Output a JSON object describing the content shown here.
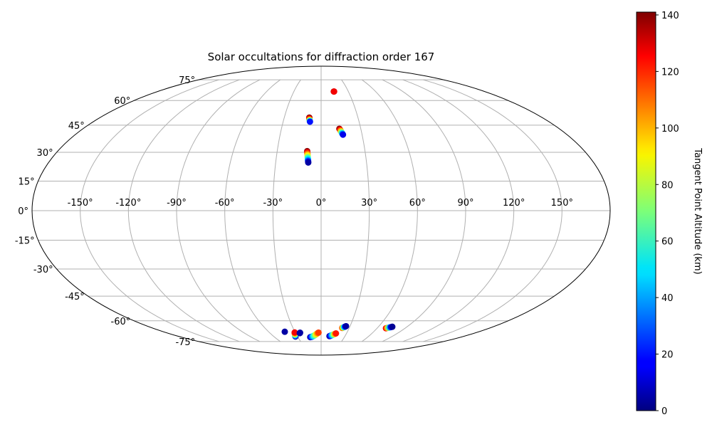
{
  "chart_data": {
    "type": "scatter",
    "projection": "mollweide",
    "title": "Solar occultations for diffraction order 167",
    "grid": true,
    "longitude_ticks": [
      "-150°",
      "-120°",
      "-90°",
      "-60°",
      "-30°",
      "0°",
      "30°",
      "60°",
      "90°",
      "120°",
      "150°"
    ],
    "latitude_ticks": [
      "-75°",
      "-60°",
      "-45°",
      "-30°",
      "-15°",
      "0°",
      "15°",
      "30°",
      "45°",
      "60°",
      "75°"
    ],
    "colorbar": {
      "label": "Tangent Point Altitude (km)",
      "colormap": "jet",
      "range": [
        0,
        141
      ],
      "ticks": [
        "0",
        "20",
        "40",
        "60",
        "80",
        "100",
        "120",
        "140"
      ]
    },
    "series": [
      {
        "points": [
          {
            "lon": 14,
            "lat": 66.1,
            "alt": 135
          },
          {
            "lon": 14.3,
            "lat": 66.1,
            "alt": 125
          }
        ]
      },
      {
        "points": [
          {
            "lon": -9.6,
            "lat": 49.4,
            "alt": 138
          },
          {
            "lon": -9.5,
            "lat": 48.7,
            "alt": 120
          },
          {
            "lon": -9.2,
            "lat": 48.0,
            "alt": 90
          },
          {
            "lon": -9.0,
            "lat": 47.5,
            "alt": 55
          },
          {
            "lon": -8.8,
            "lat": 47.0,
            "alt": 20
          }
        ]
      },
      {
        "points": [
          {
            "lon": 13.8,
            "lat": 42.9,
            "alt": 138
          },
          {
            "lon": 14.2,
            "lat": 42.4,
            "alt": 125
          },
          {
            "lon": 14.5,
            "lat": 41.9,
            "alt": 110
          },
          {
            "lon": 14.8,
            "lat": 41.5,
            "alt": 95
          },
          {
            "lon": 15.1,
            "lat": 41.0,
            "alt": 75
          },
          {
            "lon": 15.4,
            "lat": 40.5,
            "alt": 55
          },
          {
            "lon": 15.7,
            "lat": 40.1,
            "alt": 35
          },
          {
            "lon": 16.0,
            "lat": 39.6,
            "alt": 15
          }
        ]
      },
      {
        "points": [
          {
            "lon": -9.5,
            "lat": 30.6,
            "alt": 140
          },
          {
            "lon": -9.4,
            "lat": 30.0,
            "alt": 125
          },
          {
            "lon": -9.3,
            "lat": 29.4,
            "alt": 112
          },
          {
            "lon": -9.2,
            "lat": 28.8,
            "alt": 100
          },
          {
            "lon": -9.1,
            "lat": 28.2,
            "alt": 88
          },
          {
            "lon": -9.0,
            "lat": 27.6,
            "alt": 75
          },
          {
            "lon": -8.9,
            "lat": 27.0,
            "alt": 62
          },
          {
            "lon": -8.8,
            "lat": 26.4,
            "alt": 50
          },
          {
            "lon": -8.7,
            "lat": 25.8,
            "alt": 36
          },
          {
            "lon": -8.6,
            "lat": 25.2,
            "alt": 20
          },
          {
            "lon": -8.5,
            "lat": 24.6,
            "alt": 5
          }
        ]
      },
      {
        "points": [
          {
            "lon": -41.5,
            "lat": -67.5,
            "alt": 5
          }
        ]
      },
      {
        "points": [
          {
            "lon": -32.5,
            "lat": -71.0,
            "alt": 5
          },
          {
            "lon": -32.2,
            "lat": -70.5,
            "alt": 25
          },
          {
            "lon": -31.9,
            "lat": -70.0,
            "alt": 45
          },
          {
            "lon": -31.6,
            "lat": -69.5,
            "alt": 65
          },
          {
            "lon": -31.3,
            "lat": -69.0,
            "alt": 85
          },
          {
            "lon": -31.0,
            "lat": -68.5,
            "alt": 105
          },
          {
            "lon": -30.6,
            "lat": -68.0,
            "alt": 125
          }
        ]
      },
      {
        "points": [
          {
            "lon": -25.0,
            "lat": -68.5,
            "alt": 3
          },
          {
            "lon": -24.5,
            "lat": -68.2,
            "alt": 5
          }
        ]
      },
      {
        "points": [
          {
            "lon": -14.0,
            "lat": -71.5,
            "alt": 5
          },
          {
            "lon": -13.0,
            "lat": -71.4,
            "alt": 15
          },
          {
            "lon": -12.0,
            "lat": -71.2,
            "alt": 25
          },
          {
            "lon": -11.0,
            "lat": -71.0,
            "alt": 35
          },
          {
            "lon": -10.0,
            "lat": -70.7,
            "alt": 45
          },
          {
            "lon": -9.0,
            "lat": -70.4,
            "alt": 55
          },
          {
            "lon": -8.0,
            "lat": -70.1,
            "alt": 65
          },
          {
            "lon": -7.0,
            "lat": -69.7,
            "alt": 75
          },
          {
            "lon": -6.0,
            "lat": -69.3,
            "alt": 85
          },
          {
            "lon": -5.0,
            "lat": -68.9,
            "alt": 95
          },
          {
            "lon": -4.0,
            "lat": -68.5,
            "alt": 105
          },
          {
            "lon": -3.0,
            "lat": -68.1,
            "alt": 115
          }
        ]
      },
      {
        "points": [
          {
            "lon": 10.5,
            "lat": -70.7,
            "alt": 5
          },
          {
            "lon": 11.5,
            "lat": -70.5,
            "alt": 15
          },
          {
            "lon": 12.5,
            "lat": -70.2,
            "alt": 30
          },
          {
            "lon": 13.5,
            "lat": -69.9,
            "alt": 45
          },
          {
            "lon": 14.5,
            "lat": -69.6,
            "alt": 60
          },
          {
            "lon": 15.5,
            "lat": -69.3,
            "alt": 80
          },
          {
            "lon": 16.5,
            "lat": -69.0,
            "alt": 100
          },
          {
            "lon": 17.5,
            "lat": -68.7,
            "alt": 120
          }
        ]
      },
      {
        "points": [
          {
            "lon": 22.5,
            "lat": -64.8,
            "alt": 110
          },
          {
            "lon": 23.3,
            "lat": -64.5,
            "alt": 80
          },
          {
            "lon": 24.1,
            "lat": -64.2,
            "alt": 50
          },
          {
            "lon": 25.0,
            "lat": -63.9,
            "alt": 20
          },
          {
            "lon": 25.8,
            "lat": -63.6,
            "alt": 5
          }
        ]
      },
      {
        "points": [
          {
            "lon": 69.5,
            "lat": -65.0,
            "alt": 125
          },
          {
            "lon": 70.5,
            "lat": -64.8,
            "alt": 100
          },
          {
            "lon": 71.5,
            "lat": -64.6,
            "alt": 70
          },
          {
            "lon": 72.5,
            "lat": -64.4,
            "alt": 40
          },
          {
            "lon": 73.5,
            "lat": -64.2,
            "alt": 15
          },
          {
            "lon": 74.5,
            "lat": -64.0,
            "alt": 3
          }
        ]
      }
    ]
  }
}
